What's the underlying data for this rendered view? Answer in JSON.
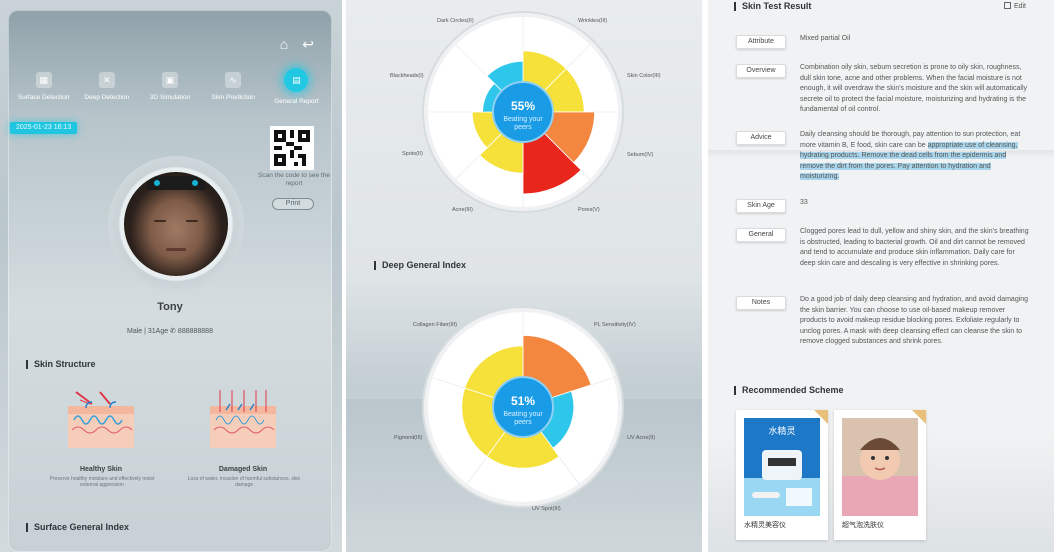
{
  "panel1": {
    "nav": [
      {
        "label": "Surface Detection",
        "icon": "chart-icon"
      },
      {
        "label": "Deep Detection",
        "icon": "molecule-icon"
      },
      {
        "label": "3D Simulation",
        "icon": "3d-icon"
      },
      {
        "label": "Skin Prediction",
        "icon": "pulse-icon"
      },
      {
        "label": "General Report",
        "icon": "report-icon"
      }
    ],
    "timestamp": "2025-01-23 16:13",
    "scan_text": "Scan the code to see the report",
    "print_label": "Print",
    "profile": {
      "name": "Tony",
      "meta": "Male | 31Age",
      "phone": "888888888"
    },
    "skin_structure_title": "Skin Structure",
    "healthy": {
      "title": "Healthy Skin",
      "desc": "Preserve healthy moisture and effectively resist external aggression"
    },
    "damaged": {
      "title": "Damaged Skin",
      "desc": "Loss of water, invasion of harmful substances, skin damage"
    },
    "surface_index_title": "Surface General Index"
  },
  "panel2": {
    "surface_radar": {
      "percent": "55%",
      "caption_line1": "Beating your",
      "caption_line2": "peers",
      "labels": [
        "Dark Circles(II)",
        "Wrinkles(III)",
        "Skin Color(III)",
        "Sebum(IV)",
        "Pores(V)",
        "Acne(III)",
        "Spots(II)",
        "Blackheads(I)"
      ]
    },
    "deep_title": "Deep General Index",
    "deep_radar": {
      "percent": "51%",
      "caption_line1": "Beating your",
      "caption_line2": "peers",
      "labels": [
        "Collagen Fiber(III)",
        "PL Sensitivity(IV)",
        "UV Acne(II)",
        "UV Spot(III)",
        "Pigment(III)"
      ]
    }
  },
  "chart_data": [
    {
      "type": "radar-bar",
      "categories": [
        "Wrinkles",
        "Skin Color",
        "Sebum",
        "Pores",
        "Acne",
        "Spots",
        "Blackheads",
        "Dark Circles"
      ],
      "values": [
        3,
        3,
        4,
        5,
        3,
        2,
        1,
        2
      ],
      "center_value": "55%",
      "colors": [
        "#f5e13a",
        "#f5e13a",
        "#f3873f",
        "#e8261c",
        "#f5e13a",
        "#f5e13a",
        "#2ec6ea",
        "#2ec6ea"
      ]
    },
    {
      "type": "radar-bar",
      "categories": [
        "PL Sensitivity",
        "UV Acne",
        "UV Spot",
        "Pigment",
        "Collagen Fiber"
      ],
      "values": [
        4,
        2,
        3,
        3,
        3
      ],
      "center_value": "51%",
      "colors": [
        "#f3873f",
        "#2ec6ea",
        "#f5e13a",
        "#f5e13a",
        "#f5e13a"
      ]
    }
  ],
  "panel3": {
    "title": "Skin Test Result",
    "edit_label": "Edit",
    "rows": [
      {
        "label": "Attribute",
        "text": "Mixed partial Oil"
      },
      {
        "label": "Overview",
        "text": "Combination oily skin, sebum secretion is prone to oily skin, roughness, dull skin tone, acne and other problems. When the facial moisture is not enough, it will overdraw the skin's moisture and the skin will automatically secrete oil to protect the facial moisture, moisturizing and hydrating is the fundamental of oil control."
      },
      {
        "label": "Advice",
        "text_plain": "Daily cleansing should be thorough, pay attention to sun protection, eat more vitamin B, E food, skin care can be ",
        "text_highlight": "appropriate use of cleansing, hydrating products. Remove the dead cells from the epidermis and remove the dirt from the pores. Pay attention to hydration and moisturizing."
      },
      {
        "label": "Skin Age",
        "text": "33"
      },
      {
        "label": "General",
        "text": "Clogged pores lead to dull, yellow and shiny skin, and the skin's breathing is obstructed, leading to bacterial growth. Oil and dirt cannot be removed and tend to accumulate and produce skin inflammation. Daily care for deep skin care and descaling is very effective in shrinking pores."
      },
      {
        "label": "Notes",
        "text": "Do a good job of daily deep cleansing and hydration, and avoid damaging the skin barrier. You can choose to use oil-based makeup remover products to avoid makeup residue blocking pores. Exfoliate regularly to unclog pores. A mask with deep cleansing effect can cleanse the skin to remove clogged substances and shrink pores."
      }
    ],
    "recommended_title": "Recommended Scheme",
    "products": [
      {
        "label": "水精灵美容仪",
        "image_text": "水精灵"
      },
      {
        "label": "超气泡洗肤仪"
      }
    ]
  }
}
